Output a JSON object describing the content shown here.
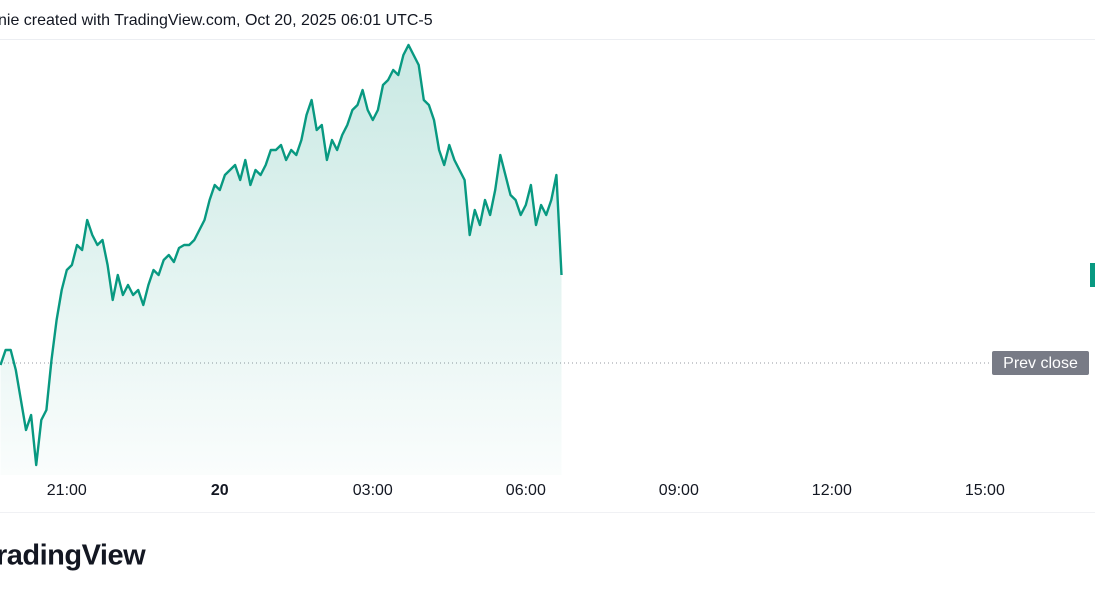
{
  "chart_data": {
    "type": "line",
    "title": "nie created with TradingView.com, Oct 20, 2025 06:01 UTC-5",
    "logo": "radingView",
    "color": "#089981",
    "x": [
      19.7,
      19.8,
      19.9,
      20.0,
      20.1,
      20.2,
      20.3,
      20.4,
      20.5,
      20.6,
      20.7,
      20.8,
      20.9,
      21.0,
      21.1,
      21.2,
      21.3,
      21.4,
      21.5,
      21.6,
      21.7,
      21.8,
      21.9,
      22.0,
      22.1,
      22.2,
      22.3,
      22.4,
      22.5,
      22.6,
      22.7,
      22.8,
      22.9,
      23.0,
      23.1,
      23.2,
      23.3,
      23.4,
      23.5,
      23.6,
      23.7,
      23.8,
      23.9,
      24.0,
      24.1,
      24.2,
      24.3,
      24.4,
      24.5,
      24.6,
      24.7,
      24.8,
      24.9,
      25.0,
      25.1,
      25.2,
      25.3,
      25.4,
      25.5,
      25.6,
      25.7,
      25.8,
      25.9,
      26.0,
      26.1,
      26.2,
      26.3,
      26.4,
      26.5,
      26.6,
      26.7,
      26.8,
      26.9,
      27.0,
      27.1,
      27.2,
      27.3,
      27.4,
      27.5,
      27.6,
      27.7,
      27.8,
      27.9,
      28.0,
      28.1,
      28.2,
      28.3,
      28.4,
      28.5,
      28.6,
      28.7,
      28.8,
      28.9,
      29.0,
      29.1,
      29.2,
      29.3,
      29.4,
      29.5,
      29.6,
      29.7,
      29.8,
      29.9,
      30.0,
      30.1,
      30.2,
      30.3,
      30.4,
      30.5,
      30.6,
      30.7
    ],
    "values": [
      -2,
      13,
      13,
      -7,
      -37,
      -67,
      -52,
      -102,
      -57,
      -47,
      3,
      43,
      73,
      93,
      98,
      118,
      113,
      143,
      128,
      118,
      123,
      98,
      63,
      88,
      68,
      78,
      68,
      73,
      58,
      78,
      93,
      88,
      103,
      108,
      101,
      115,
      118,
      118,
      123,
      133,
      143,
      163,
      178,
      173,
      188,
      193,
      198,
      183,
      203,
      178,
      193,
      188,
      198,
      213,
      213,
      218,
      203,
      213,
      208,
      223,
      248,
      263,
      233,
      238,
      203,
      223,
      213,
      228,
      238,
      253,
      258,
      273,
      253,
      243,
      253,
      278,
      283,
      293,
      288,
      308,
      318,
      308,
      298,
      263,
      258,
      243,
      213,
      198,
      218,
      203,
      193,
      183,
      128,
      153,
      138,
      163,
      148,
      173,
      208,
      188,
      168,
      163,
      148,
      158,
      178,
      138,
      158,
      148,
      163,
      188,
      88
    ],
    "xlim": [
      19.69,
      41.16
    ],
    "ylim": [
      -112,
      323
    ],
    "xticks": [
      {
        "value": 21,
        "label": "21:00"
      },
      {
        "value": 24,
        "label": "20"
      },
      {
        "value": 27,
        "label": "03:00"
      },
      {
        "value": 30,
        "label": "06:00"
      },
      {
        "value": 33,
        "label": "09:00"
      },
      {
        "value": 36,
        "label": "12:00"
      },
      {
        "value": 39,
        "label": "15:00"
      }
    ],
    "reference_line": {
      "label": "Prev close",
      "value": 0
    },
    "grid": false
  }
}
